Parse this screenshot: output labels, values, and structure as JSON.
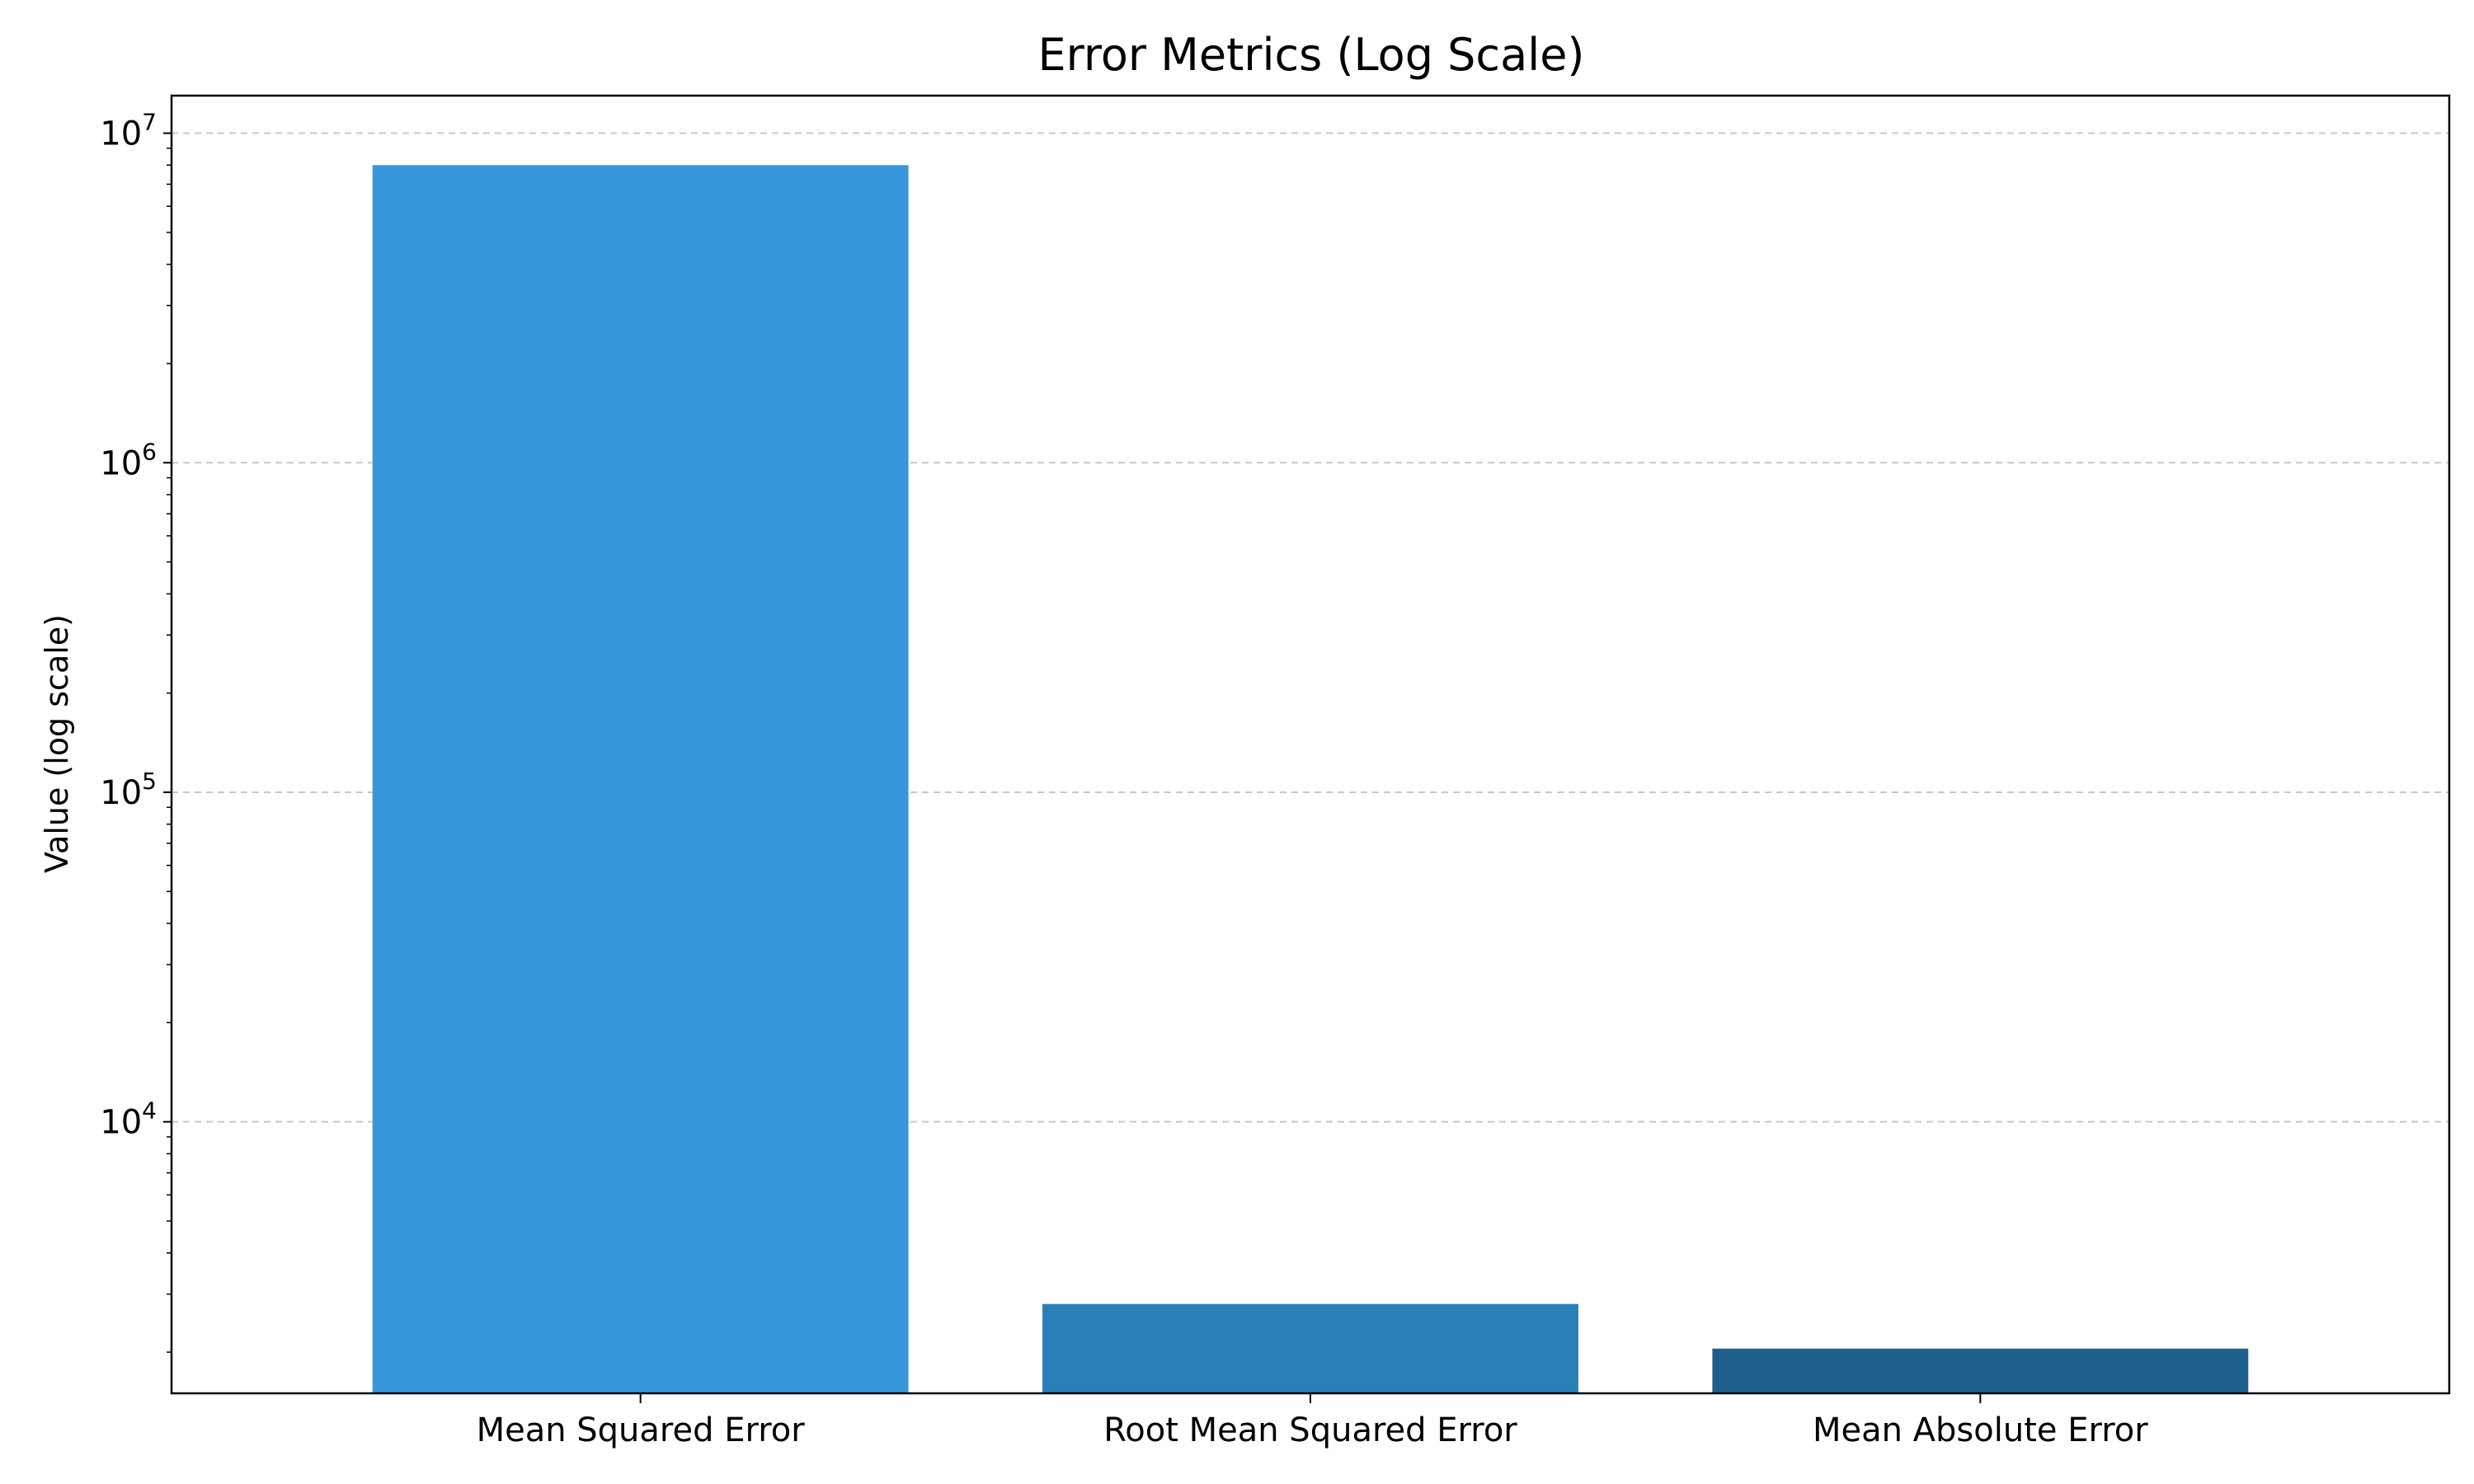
{
  "chart_data": {
    "type": "bar",
    "title": "Error Metrics (Log Scale)",
    "xlabel": "",
    "ylabel": "Value (log scale)",
    "yscale": "log",
    "ylim": [
      1500,
      13000000
    ],
    "categories": [
      "Mean Squared Error",
      "Root Mean Squared Error",
      "Mean Absolute Error"
    ],
    "values": [
      8000000,
      2800,
      2050
    ],
    "colors": [
      "#3698db",
      "#2a7fb9",
      "#1f5f8b"
    ],
    "yticks": [
      {
        "value": 10000,
        "base": "10",
        "exponent": "4"
      },
      {
        "value": 100000,
        "base": "10",
        "exponent": "5"
      },
      {
        "value": 1000000,
        "base": "10",
        "exponent": "6"
      },
      {
        "value": 10000000,
        "base": "10",
        "exponent": "7"
      }
    ],
    "grid": {
      "axis": "y",
      "style": "dashed",
      "color": "#c8c8c8"
    },
    "legend": "none"
  }
}
